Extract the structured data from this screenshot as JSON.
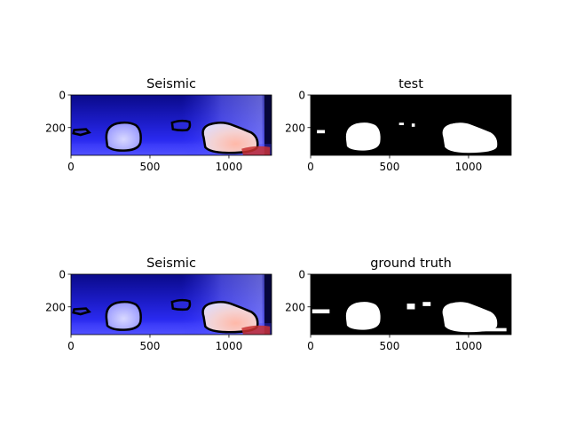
{
  "figure": {
    "background": "#ffffff"
  },
  "chart_data": [
    {
      "type": "image",
      "panel": "top-left",
      "title": "Seismic",
      "xlim": [
        0,
        1270
      ],
      "ylim": [
        370,
        0
      ],
      "xticks": [
        0,
        500,
        1000
      ],
      "yticks": [
        0,
        200
      ],
      "colormap": "seismic",
      "overlay": "black contours of predicted masks"
    },
    {
      "type": "image",
      "panel": "top-right",
      "title": "test",
      "xlim": [
        0,
        1270
      ],
      "ylim": [
        370,
        0
      ],
      "xticks": [
        0,
        500,
        1000
      ],
      "yticks": [
        0,
        200
      ],
      "colormap": "binary mask (white on black)"
    },
    {
      "type": "image",
      "panel": "bottom-left",
      "title": "Seismic",
      "xlim": [
        0,
        1270
      ],
      "ylim": [
        370,
        0
      ],
      "xticks": [
        0,
        500,
        1000
      ],
      "yticks": [
        0,
        200
      ],
      "colormap": "seismic",
      "overlay": "black contours of ground-truth masks"
    },
    {
      "type": "image",
      "panel": "bottom-right",
      "title": "ground truth",
      "xlim": [
        0,
        1270
      ],
      "ylim": [
        370,
        0
      ],
      "xticks": [
        0,
        500,
        1000
      ],
      "yticks": [
        0,
        200
      ],
      "colormap": "binary mask (white on black)"
    }
  ]
}
